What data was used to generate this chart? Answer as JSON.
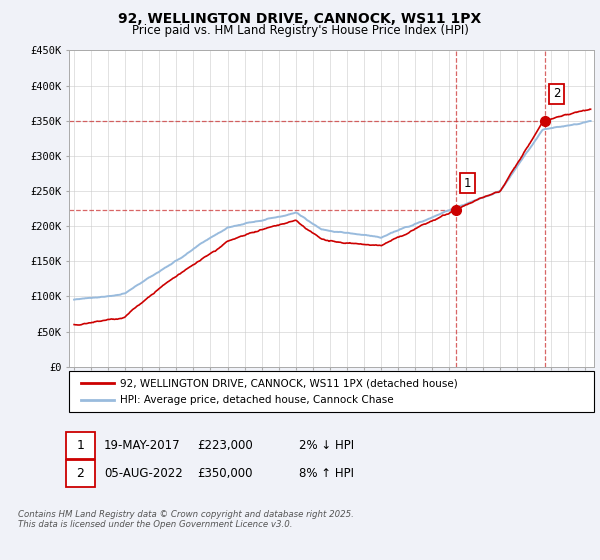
{
  "title": "92, WELLINGTON DRIVE, CANNOCK, WS11 1PX",
  "subtitle": "Price paid vs. HM Land Registry's House Price Index (HPI)",
  "legend_line1": "92, WELLINGTON DRIVE, CANNOCK, WS11 1PX (detached house)",
  "legend_line2": "HPI: Average price, detached house, Cannock Chase",
  "ann1_label": "1",
  "ann1_date": "19-MAY-2017",
  "ann1_price": "£223,000",
  "ann1_pct": "2% ↓ HPI",
  "ann2_label": "2",
  "ann2_date": "05-AUG-2022",
  "ann2_price": "£350,000",
  "ann2_pct": "8% ↑ HPI",
  "footer": "Contains HM Land Registry data © Crown copyright and database right 2025.\nThis data is licensed under the Open Government Licence v3.0.",
  "red_color": "#cc0000",
  "blue_color": "#99bbdd",
  "dash_color": "#cc3333",
  "bg_color": "#f0f2f8",
  "plot_bg": "#ffffff",
  "ylim": [
    0,
    450000
  ],
  "yticks": [
    0,
    50000,
    100000,
    150000,
    200000,
    250000,
    300000,
    350000,
    400000,
    450000
  ],
  "ytick_labels": [
    "£0",
    "£50K",
    "£100K",
    "£150K",
    "£200K",
    "£250K",
    "£300K",
    "£350K",
    "£400K",
    "£450K"
  ],
  "xmin": 1994.7,
  "xmax": 2025.5,
  "event1_x": 2017.38,
  "event2_x": 2022.6,
  "event1_y": 223000,
  "event2_y": 350000,
  "seed": 77
}
